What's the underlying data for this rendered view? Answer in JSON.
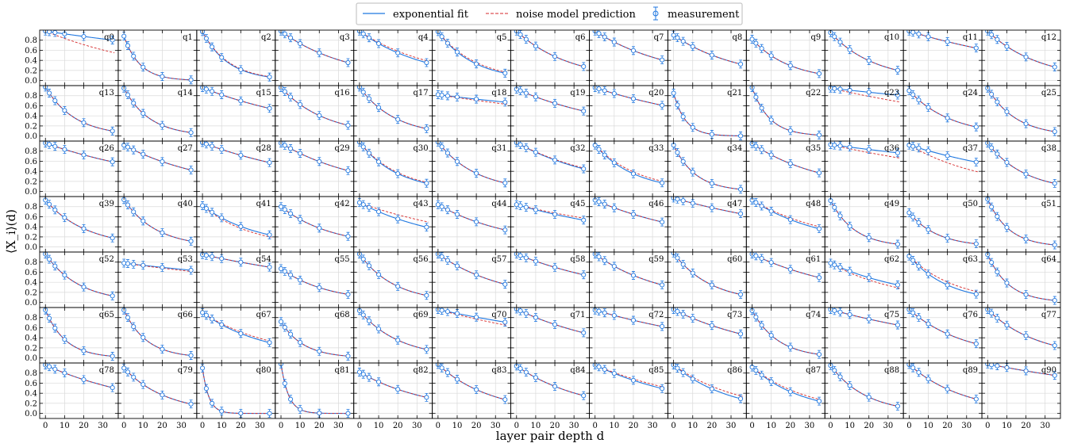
{
  "chart_data": {
    "type": "line",
    "layout": {
      "rows": 7,
      "cols": 13
    },
    "xlabel": "layer pair depth d",
    "ylabel": "⟨X_i⟩(d)",
    "xlim": [
      -3,
      38
    ],
    "ylim": [
      -0.1,
      1.0
    ],
    "x_ticks": [
      0,
      10,
      20,
      30
    ],
    "y_ticks": [
      0.0,
      0.2,
      0.4,
      0.6,
      0.8
    ],
    "y_tick_labels": [
      "0.0",
      "0.2",
      "0.4",
      "0.6",
      "0.8"
    ],
    "grid": true,
    "measurement_depths": [
      0,
      2,
      5,
      10,
      20,
      35
    ],
    "legend": {
      "position": "top-center",
      "entries": [
        "exponential fit",
        "noise model prediction",
        "measurement"
      ]
    },
    "colors": {
      "fit": "#1f77e0",
      "noise": "#d62728",
      "measurement": "#1f77e0"
    },
    "series_names": {
      "fit": "exponential fit",
      "noise": "noise model prediction",
      "measurement": "measurement"
    },
    "panels": [
      {
        "label": "q0",
        "fit": [
          0.98,
          0.0057
        ],
        "noise": [
          0.98,
          0.016
        ]
      },
      {
        "label": "q1",
        "fit": [
          0.88,
          0.12
        ],
        "noise": [
          0.88,
          0.12
        ]
      },
      {
        "label": "q2",
        "fit": [
          0.97,
          0.075
        ],
        "noise": [
          0.97,
          0.072
        ]
      },
      {
        "label": "q3",
        "fit": [
          0.98,
          0.029
        ],
        "noise": [
          0.98,
          0.029
        ]
      },
      {
        "label": "q4",
        "fit": [
          0.98,
          0.029
        ],
        "noise": [
          0.98,
          0.026
        ]
      },
      {
        "label": "q5",
        "fit": [
          0.97,
          0.054
        ],
        "noise": [
          0.97,
          0.05
        ]
      },
      {
        "label": "q6",
        "fit": [
          0.98,
          0.036
        ],
        "noise": [
          0.98,
          0.036
        ]
      },
      {
        "label": "q7",
        "fit": [
          0.98,
          0.025
        ],
        "noise": [
          0.98,
          0.025
        ]
      },
      {
        "label": "q8",
        "fit": [
          0.9,
          0.029
        ],
        "noise": [
          0.9,
          0.029
        ]
      },
      {
        "label": "q9",
        "fit": [
          0.82,
          0.051
        ],
        "noise": [
          0.82,
          0.051
        ]
      },
      {
        "label": "q10",
        "fit": [
          0.95,
          0.044
        ],
        "noise": [
          0.95,
          0.044
        ]
      },
      {
        "label": "q11",
        "fit": [
          0.98,
          0.012
        ],
        "noise": [
          0.98,
          0.012
        ]
      },
      {
        "label": "q12",
        "fit": [
          0.98,
          0.037
        ],
        "noise": [
          0.98,
          0.037
        ]
      },
      {
        "label": "q13",
        "fit": [
          0.97,
          0.065
        ],
        "noise": [
          0.97,
          0.065
        ]
      },
      {
        "label": "q14",
        "fit": [
          0.95,
          0.075
        ],
        "noise": [
          0.95,
          0.075
        ]
      },
      {
        "label": "q15",
        "fit": [
          0.96,
          0.016
        ],
        "noise": [
          0.96,
          0.016
        ]
      },
      {
        "label": "q16",
        "fit": [
          0.96,
          0.043
        ],
        "noise": [
          0.96,
          0.043
        ]
      },
      {
        "label": "q17",
        "fit": [
          0.97,
          0.054
        ],
        "noise": [
          0.97,
          0.054
        ]
      },
      {
        "label": "q18",
        "fit": [
          0.82,
          0.0057
        ],
        "noise": [
          0.82,
          0.0074
        ]
      },
      {
        "label": "q19",
        "fit": [
          0.93,
          0.018
        ],
        "noise": [
          0.93,
          0.018
        ]
      },
      {
        "label": "q20",
        "fit": [
          0.96,
          0.013
        ],
        "noise": [
          0.96,
          0.013
        ]
      },
      {
        "label": "q21",
        "fit": [
          0.85,
          0.16
        ],
        "noise": [
          0.85,
          0.16
        ]
      },
      {
        "label": "q22",
        "fit": [
          0.96,
          0.11
        ],
        "noise": [
          0.96,
          0.11
        ]
      },
      {
        "label": "q23",
        "fit": [
          0.95,
          0.0045
        ],
        "noise": [
          0.95,
          0.0094
        ]
      },
      {
        "label": "q24",
        "fit": [
          0.9,
          0.046
        ],
        "noise": [
          0.9,
          0.046
        ]
      },
      {
        "label": "q25",
        "fit": [
          0.95,
          0.068
        ],
        "noise": [
          0.95,
          0.068
        ]
      },
      {
        "label": "q26",
        "fit": [
          0.96,
          0.014
        ],
        "noise": [
          0.96,
          0.014
        ]
      },
      {
        "label": "q27",
        "fit": [
          0.92,
          0.022
        ],
        "noise": [
          0.92,
          0.022
        ]
      },
      {
        "label": "q28",
        "fit": [
          0.97,
          0.015
        ],
        "noise": [
          0.97,
          0.015
        ]
      },
      {
        "label": "q29",
        "fit": [
          0.96,
          0.024
        ],
        "noise": [
          0.96,
          0.024
        ]
      },
      {
        "label": "q30",
        "fit": [
          0.98,
          0.051
        ],
        "noise": [
          0.98,
          0.048
        ]
      },
      {
        "label": "q31",
        "fit": [
          0.98,
          0.05
        ],
        "noise": [
          0.98,
          0.05
        ]
      },
      {
        "label": "q32",
        "fit": [
          0.97,
          0.022
        ],
        "noise": [
          0.97,
          0.021
        ]
      },
      {
        "label": "q33",
        "fit": [
          0.92,
          0.048
        ],
        "noise": [
          0.92,
          0.043
        ]
      },
      {
        "label": "q34",
        "fit": [
          0.92,
          0.087
        ],
        "noise": [
          0.92,
          0.087
        ]
      },
      {
        "label": "q35",
        "fit": [
          0.95,
          0.027
        ],
        "noise": [
          0.95,
          0.027
        ]
      },
      {
        "label": "q36",
        "fit": [
          0.93,
          0.0055
        ],
        "noise": [
          0.93,
          0.0094
        ]
      },
      {
        "label": "q37",
        "fit": [
          0.92,
          0.013
        ],
        "noise": [
          0.92,
          0.024
        ]
      },
      {
        "label": "q38",
        "fit": [
          0.96,
          0.051
        ],
        "noise": [
          0.96,
          0.051
        ]
      },
      {
        "label": "q39",
        "fit": [
          0.93,
          0.047
        ],
        "noise": [
          0.93,
          0.047
        ]
      },
      {
        "label": "q40",
        "fit": [
          0.94,
          0.06
        ],
        "noise": [
          0.94,
          0.06
        ]
      },
      {
        "label": "q41",
        "fit": [
          0.82,
          0.035
        ],
        "noise": [
          0.82,
          0.04
        ]
      },
      {
        "label": "q42",
        "fit": [
          0.8,
          0.038
        ],
        "noise": [
          0.8,
          0.038
        ]
      },
      {
        "label": "q43",
        "fit": [
          0.88,
          0.023
        ],
        "noise": [
          0.88,
          0.016
        ]
      },
      {
        "label": "q44",
        "fit": [
          0.84,
          0.026
        ],
        "noise": [
          0.84,
          0.026
        ]
      },
      {
        "label": "q45",
        "fit": [
          0.84,
          0.013
        ],
        "noise": [
          0.84,
          0.011
        ]
      },
      {
        "label": "q46",
        "fit": [
          0.93,
          0.018
        ],
        "noise": [
          0.93,
          0.018
        ]
      },
      {
        "label": "q47",
        "fit": [
          0.97,
          0.011
        ],
        "noise": [
          0.97,
          0.011
        ]
      },
      {
        "label": "q48",
        "fit": [
          0.93,
          0.027
        ],
        "noise": [
          0.93,
          0.024
        ]
      },
      {
        "label": "q49",
        "fit": [
          0.92,
          0.08
        ],
        "noise": [
          0.92,
          0.08
        ]
      },
      {
        "label": "q50",
        "fit": [
          0.68,
          0.068
        ],
        "noise": [
          0.68,
          0.068
        ]
      },
      {
        "label": "q51",
        "fit": [
          0.95,
          0.09
        ],
        "noise": [
          0.95,
          0.09
        ]
      },
      {
        "label": "q52",
        "fit": [
          0.96,
          0.057
        ],
        "noise": [
          0.96,
          0.057
        ]
      },
      {
        "label": "q53",
        "fit": [
          0.78,
          0.0057
        ],
        "noise": [
          0.78,
          0.0068
        ]
      },
      {
        "label": "q54",
        "fit": [
          0.95,
          0.0087
        ],
        "noise": [
          0.95,
          0.0087
        ]
      },
      {
        "label": "q55",
        "fit": [
          0.67,
          0.041
        ],
        "noise": [
          0.67,
          0.041
        ]
      },
      {
        "label": "q56",
        "fit": [
          0.96,
          0.055
        ],
        "noise": [
          0.96,
          0.055
        ]
      },
      {
        "label": "q57",
        "fit": [
          0.96,
          0.028
        ],
        "noise": [
          0.96,
          0.028
        ]
      },
      {
        "label": "q58",
        "fit": [
          0.96,
          0.016
        ],
        "noise": [
          0.96,
          0.016
        ]
      },
      {
        "label": "q59",
        "fit": [
          0.96,
          0.029
        ],
        "noise": [
          0.96,
          0.029
        ]
      },
      {
        "label": "q60",
        "fit": [
          0.98,
          0.052
        ],
        "noise": [
          0.98,
          0.052
        ]
      },
      {
        "label": "q61",
        "fit": [
          0.96,
          0.019
        ],
        "noise": [
          0.96,
          0.019
        ]
      },
      {
        "label": "q62",
        "fit": [
          0.78,
          0.023
        ],
        "noise": [
          0.78,
          0.028
        ]
      },
      {
        "label": "q63",
        "fit": [
          0.92,
          0.049
        ],
        "noise": [
          0.92,
          0.041
        ]
      },
      {
        "label": "q64",
        "fit": [
          0.95,
          0.09
        ],
        "noise": [
          0.95,
          0.09
        ]
      },
      {
        "label": "q65",
        "fit": [
          0.95,
          0.095
        ],
        "noise": [
          0.95,
          0.095
        ]
      },
      {
        "label": "q66",
        "fit": [
          0.95,
          0.085
        ],
        "noise": [
          0.95,
          0.085
        ]
      },
      {
        "label": "q67",
        "fit": [
          0.9,
          0.031
        ],
        "noise": [
          0.9,
          0.028
        ]
      },
      {
        "label": "q68",
        "fit": [
          0.72,
          0.085
        ],
        "noise": [
          0.72,
          0.085
        ]
      },
      {
        "label": "q69",
        "fit": [
          0.94,
          0.049
        ],
        "noise": [
          0.94,
          0.049
        ]
      },
      {
        "label": "q70",
        "fit": [
          0.96,
          0.0086
        ],
        "noise": [
          0.96,
          0.011
        ]
      },
      {
        "label": "q71",
        "fit": [
          0.97,
          0.019
        ],
        "noise": [
          0.97,
          0.019
        ]
      },
      {
        "label": "q72",
        "fit": [
          0.95,
          0.012
        ],
        "noise": [
          0.95,
          0.012
        ]
      },
      {
        "label": "q73",
        "fit": [
          0.96,
          0.02
        ],
        "noise": [
          0.96,
          0.02
        ]
      },
      {
        "label": "q74",
        "fit": [
          0.94,
          0.074
        ],
        "noise": [
          0.94,
          0.074
        ]
      },
      {
        "label": "q75",
        "fit": [
          0.96,
          0.011
        ],
        "noise": [
          0.96,
          0.011
        ]
      },
      {
        "label": "q76",
        "fit": [
          0.96,
          0.035
        ],
        "noise": [
          0.96,
          0.035
        ]
      },
      {
        "label": "q77",
        "fit": [
          0.96,
          0.039
        ],
        "noise": [
          0.96,
          0.039
        ]
      },
      {
        "label": "q78",
        "fit": [
          0.96,
          0.018
        ],
        "noise": [
          0.96,
          0.018
        ]
      },
      {
        "label": "q79",
        "fit": [
          0.9,
          0.045
        ],
        "noise": [
          0.9,
          0.045
        ]
      },
      {
        "label": "q80",
        "fit": [
          0.9,
          0.3
        ],
        "noise": [
          0.9,
          0.3
        ]
      },
      {
        "label": "q81",
        "fit": [
          0.98,
          0.25
        ],
        "noise": [
          0.98,
          0.25
        ]
      },
      {
        "label": "q82",
        "fit": [
          0.82,
          0.027
        ],
        "noise": [
          0.82,
          0.027
        ]
      },
      {
        "label": "q83",
        "fit": [
          0.97,
          0.036
        ],
        "noise": [
          0.97,
          0.036
        ]
      },
      {
        "label": "q84",
        "fit": [
          0.94,
          0.028
        ],
        "noise": [
          0.94,
          0.028
        ]
      },
      {
        "label": "q85",
        "fit": [
          0.96,
          0.019
        ],
        "noise": [
          0.96,
          0.017
        ]
      },
      {
        "label": "q86",
        "fit": [
          0.96,
          0.034
        ],
        "noise": [
          0.96,
          0.029
        ]
      },
      {
        "label": "q87",
        "fit": [
          0.92,
          0.038
        ],
        "noise": [
          0.92,
          0.034
        ]
      },
      {
        "label": "q88",
        "fit": [
          0.95,
          0.054
        ],
        "noise": [
          0.95,
          0.054
        ]
      },
      {
        "label": "q89",
        "fit": [
          0.97,
          0.035
        ],
        "noise": [
          0.97,
          0.035
        ]
      },
      {
        "label": "q90",
        "fit": [
          0.98,
          0.0075
        ],
        "noise": [
          0.98,
          0.0075
        ]
      }
    ]
  }
}
